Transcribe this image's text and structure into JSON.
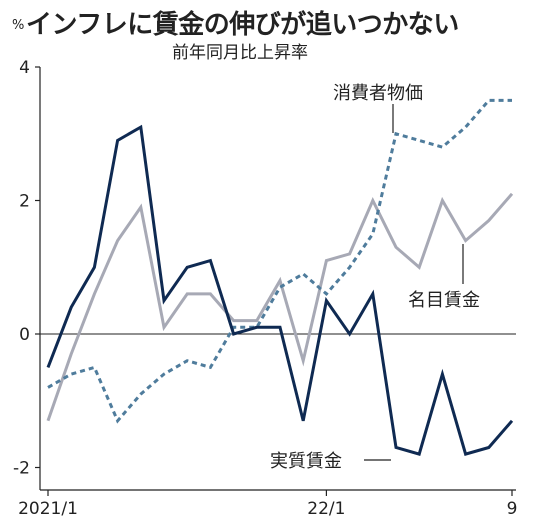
{
  "chart_data": {
    "type": "line",
    "title": "インフレに賃金の伸びが追いつかない",
    "subtitle": "前年同月比上昇率",
    "unit": "%",
    "ylim": [
      -2.3,
      4
    ],
    "yticks": [
      4,
      2,
      0,
      -2
    ],
    "xticks": [
      {
        "index": 0,
        "label": "2021/1"
      },
      {
        "index": 12,
        "label": "22/1"
      },
      {
        "index": 20,
        "label": "9"
      }
    ],
    "x": [
      "2021/1",
      "2021/2",
      "2021/3",
      "2021/4",
      "2021/5",
      "2021/6",
      "2021/7",
      "2021/8",
      "2021/9",
      "2021/10",
      "2021/11",
      "2021/12",
      "2022/1",
      "2022/2",
      "2022/3",
      "2022/4",
      "2022/5",
      "2022/6",
      "2022/7",
      "2022/8",
      "2022/9"
    ],
    "series": [
      {
        "name": "実質賃金",
        "color": "#0f2a52",
        "dash": "none",
        "width": 3,
        "values": [
          -0.5,
          0.4,
          1.0,
          2.9,
          3.1,
          0.5,
          1.0,
          1.1,
          0.0,
          0.1,
          0.1,
          -1.3,
          0.5,
          0.0,
          0.6,
          -1.7,
          -1.8,
          -0.6,
          -1.8,
          -1.7,
          -1.3
        ]
      },
      {
        "name": "名目賃金",
        "color": "#a7a9b5",
        "dash": "none",
        "width": 3,
        "values": [
          -1.3,
          -0.3,
          0.6,
          1.4,
          1.9,
          0.1,
          0.6,
          0.6,
          0.2,
          0.2,
          0.8,
          -0.4,
          1.1,
          1.2,
          2.0,
          1.3,
          1.0,
          2.0,
          1.4,
          1.7,
          2.1
        ]
      },
      {
        "name": "消費者物価",
        "color": "#4f7c9c",
        "dash": "5,4",
        "width": 3,
        "values": [
          -0.8,
          -0.6,
          -0.5,
          -1.3,
          -0.9,
          -0.6,
          -0.4,
          -0.5,
          0.1,
          0.1,
          0.7,
          0.9,
          0.6,
          1.0,
          1.5,
          3.0,
          2.9,
          2.8,
          3.1,
          3.5,
          3.5
        ]
      }
    ]
  }
}
